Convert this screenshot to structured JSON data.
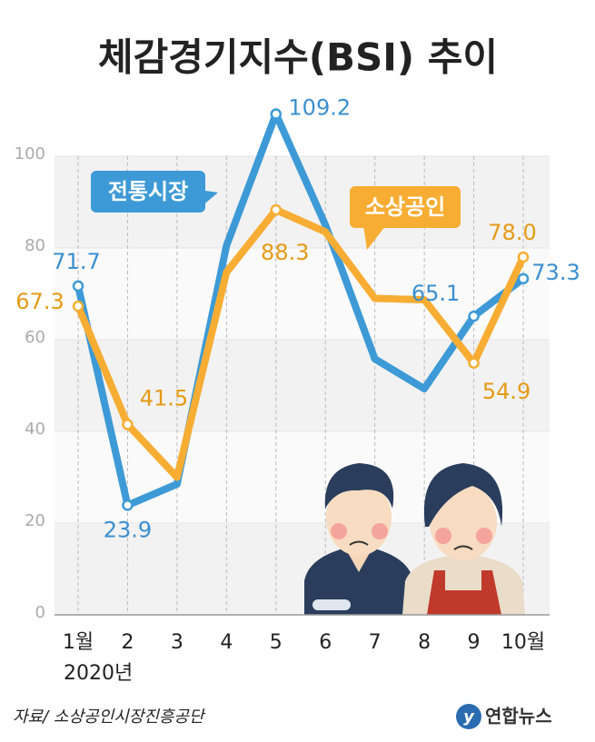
{
  "chart_data": {
    "type": "line",
    "title": "체감경기지수(BSI) 추이",
    "categories": [
      "1월",
      "2",
      "3",
      "4",
      "5",
      "6",
      "7",
      "8",
      "9",
      "10월"
    ],
    "x_note": "2020년",
    "series": [
      {
        "name": "전통시장",
        "color": "#3d9ad6",
        "label_color": "#3a8fd0",
        "values": [
          71.7,
          23.9,
          28.5,
          80.5,
          109.2,
          85,
          55.8,
          49.3,
          65.1,
          73.3
        ],
        "value_labels": [
          "71.7",
          "23.9",
          null,
          null,
          "109.2",
          null,
          null,
          null,
          "65.1",
          "73.3"
        ]
      },
      {
        "name": "소상공인",
        "color": "#f7ad33",
        "label_color": "#e59a17",
        "values": [
          67.3,
          41.5,
          30,
          74.7,
          88.3,
          83.5,
          69,
          68.7,
          54.9,
          78
        ],
        "value_labels": [
          "67.3",
          "41.5",
          null,
          null,
          "88.3",
          null,
          null,
          null,
          "54.9",
          "78.0"
        ]
      }
    ],
    "ylim": [
      0,
      110
    ],
    "yticks": [
      0,
      20,
      40,
      60,
      80,
      100
    ],
    "grid": true,
    "source": "자료/ 소상공인시장진흥공단",
    "credit": "연합뉴스"
  }
}
